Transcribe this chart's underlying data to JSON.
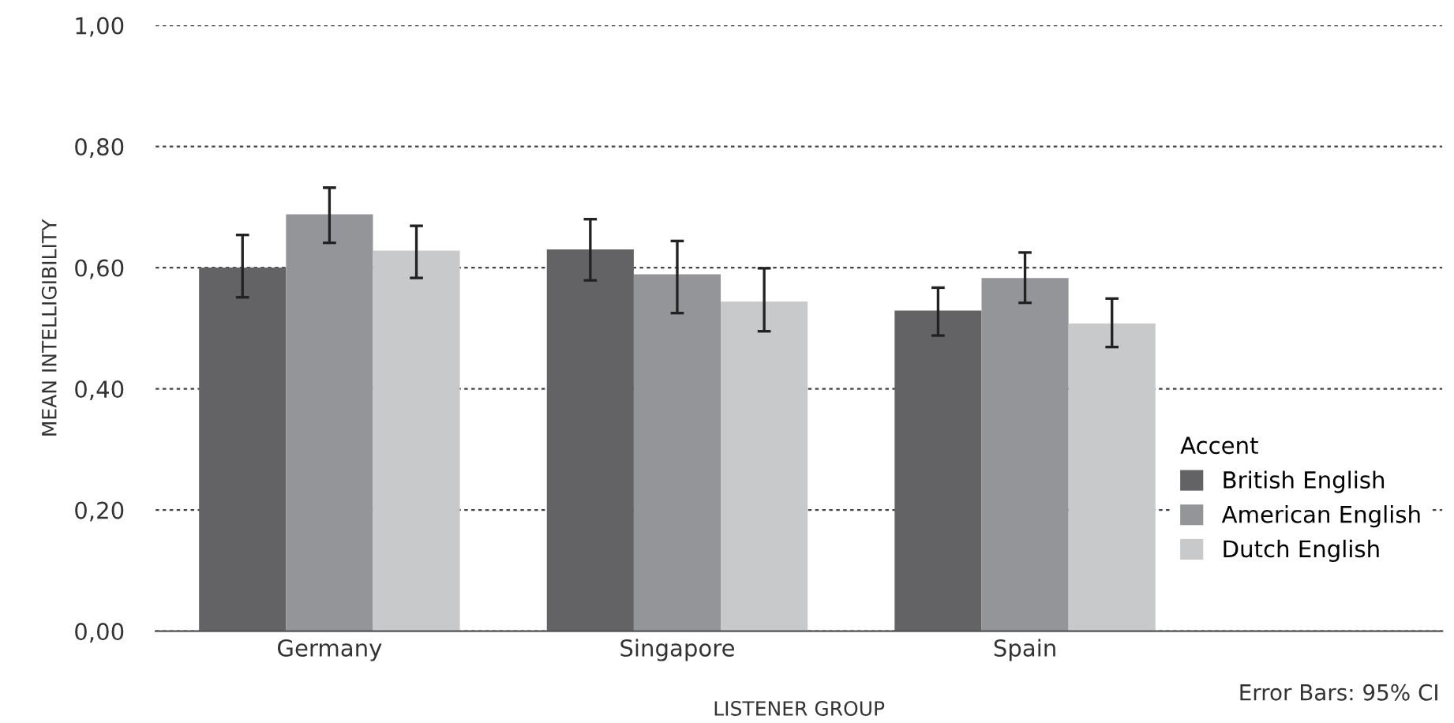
{
  "chart_data": {
    "type": "bar",
    "xlabel": "LISTENER GROUP",
    "ylabel": "MEAN INTELLIGIBILITY",
    "legend_title": "Accent",
    "categories": [
      "Germany",
      "Singapore",
      "Spain"
    ],
    "series": [
      {
        "name": "British English",
        "color": "#636365",
        "values": [
          0.6,
          0.63,
          0.529
        ],
        "errors": [
          [
            0.551,
            0.654
          ],
          [
            0.579,
            0.68
          ],
          [
            0.488,
            0.567
          ]
        ]
      },
      {
        "name": "American English",
        "color": "#949598",
        "values": [
          0.688,
          0.589,
          0.583
        ],
        "errors": [
          [
            0.641,
            0.732
          ],
          [
            0.525,
            0.644
          ],
          [
            0.542,
            0.625
          ]
        ]
      },
      {
        "name": "Dutch English",
        "color": "#c8c9cb",
        "values": [
          0.628,
          0.544,
          0.508
        ],
        "errors": [
          [
            0.583,
            0.669
          ],
          [
            0.495,
            0.599
          ],
          [
            0.469,
            0.549
          ]
        ]
      }
    ],
    "ylim": [
      0,
      1
    ],
    "yticks": [
      {
        "value": 0,
        "label": "0,00"
      },
      {
        "value": 0.2,
        "label": "0,20"
      },
      {
        "value": 0.4,
        "label": "0,40"
      },
      {
        "value": 0.6,
        "label": "0,60"
      },
      {
        "value": 0.8,
        "label": "0,80"
      },
      {
        "value": 1,
        "label": "1,00"
      }
    ],
    "grid": "y",
    "legend": "bottom right",
    "annotations": [
      "Error Bars: 95% CI"
    ]
  }
}
